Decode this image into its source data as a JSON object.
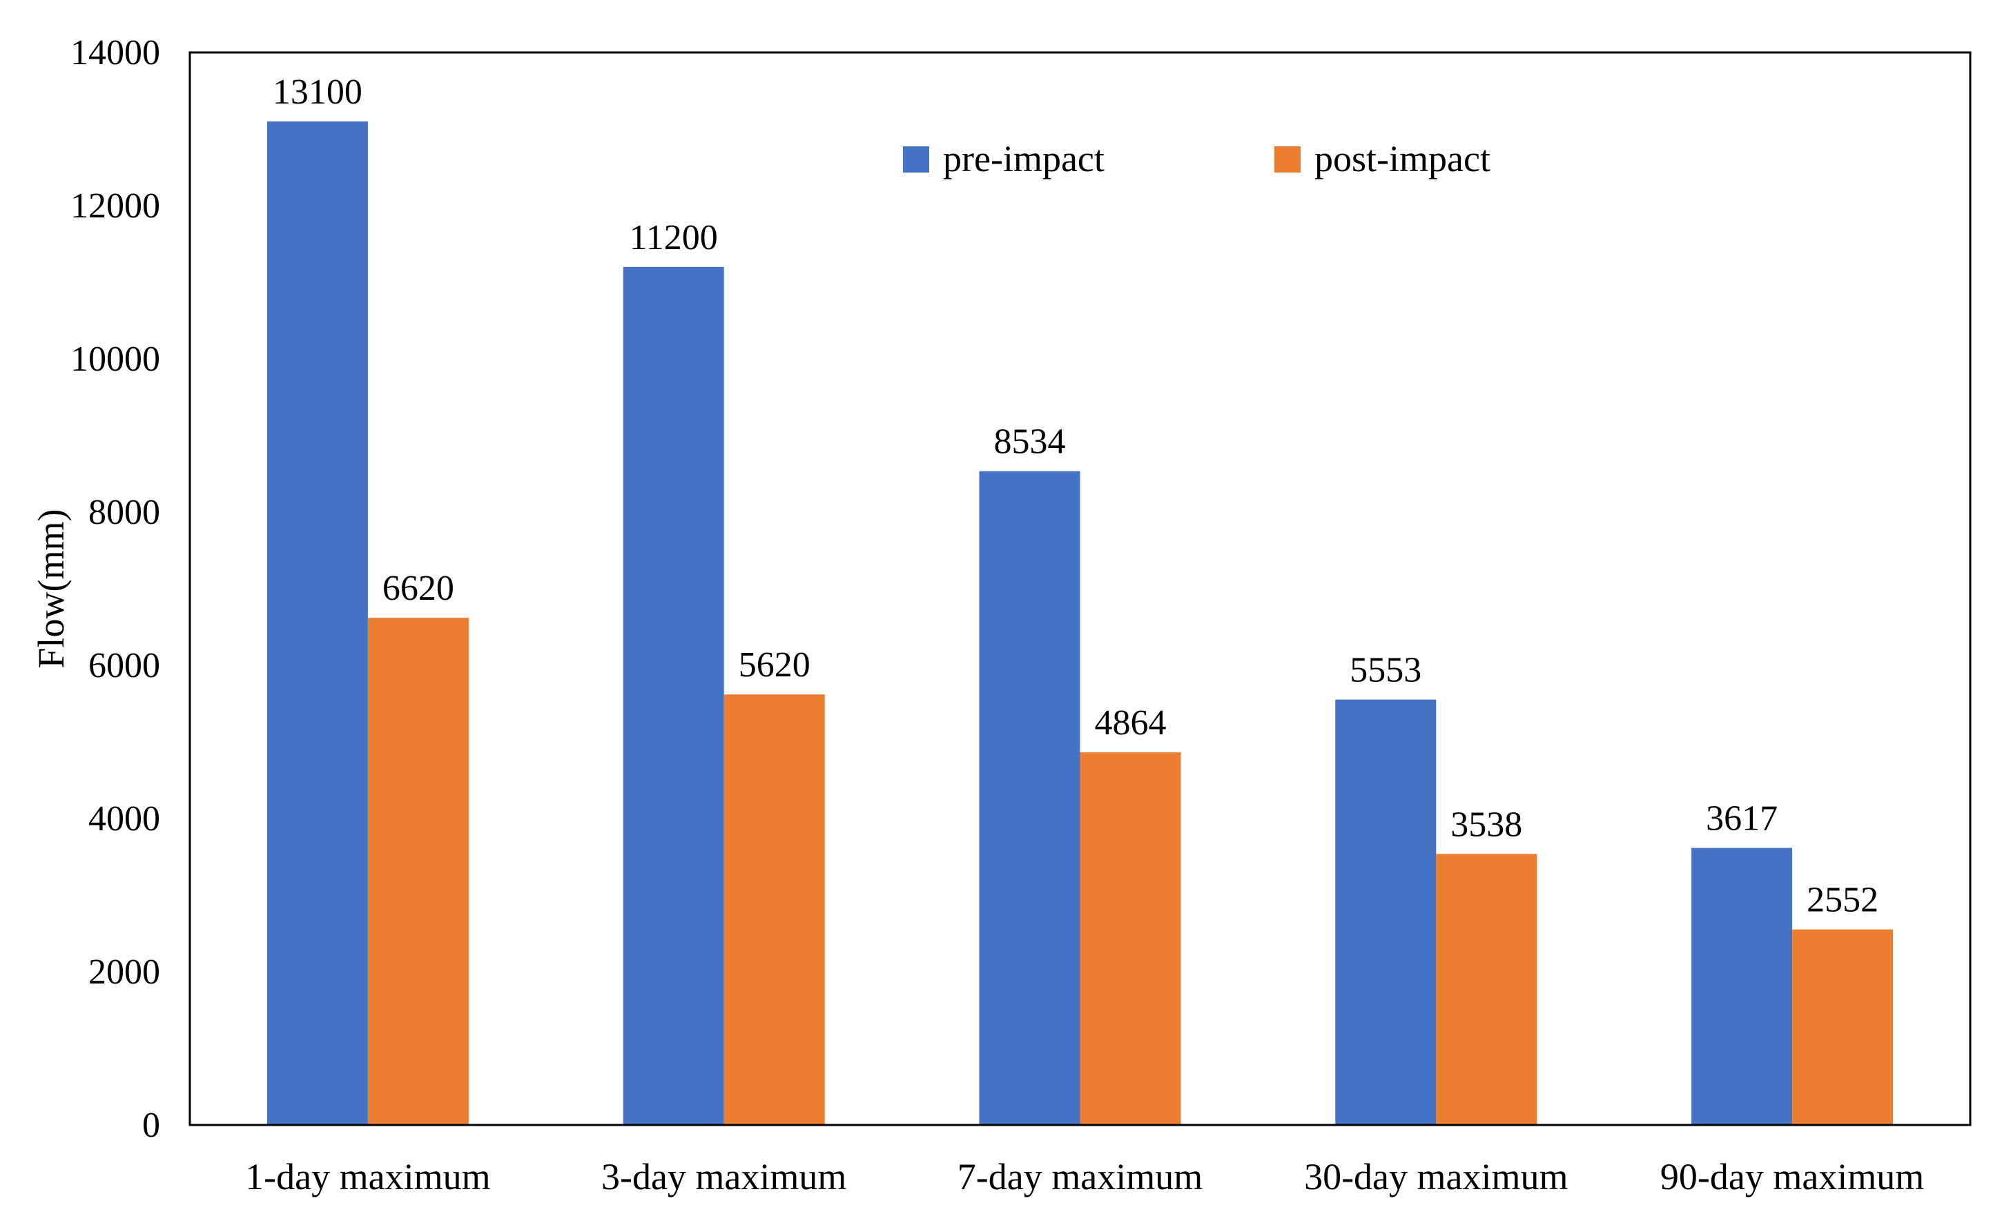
{
  "chart_data": {
    "type": "bar",
    "title": "",
    "xlabel": "",
    "ylabel": "Flow(mm)",
    "ylim": [
      0,
      14000
    ],
    "yticks": [
      0,
      2000,
      4000,
      6000,
      8000,
      10000,
      12000,
      14000
    ],
    "grid": false,
    "legend_position": "top-center",
    "categories": [
      "1-day maximum",
      "3-day maximum",
      "7-day maximum",
      "30-day maximum",
      "90-day maximum"
    ],
    "series": [
      {
        "name": "pre-impact",
        "color": "#4472C4",
        "values": [
          13100,
          11200,
          8534,
          5553,
          3617
        ]
      },
      {
        "name": "post-impact",
        "color": "#ED7D31",
        "values": [
          6620,
          5620,
          4864,
          3538,
          2552
        ]
      }
    ]
  }
}
